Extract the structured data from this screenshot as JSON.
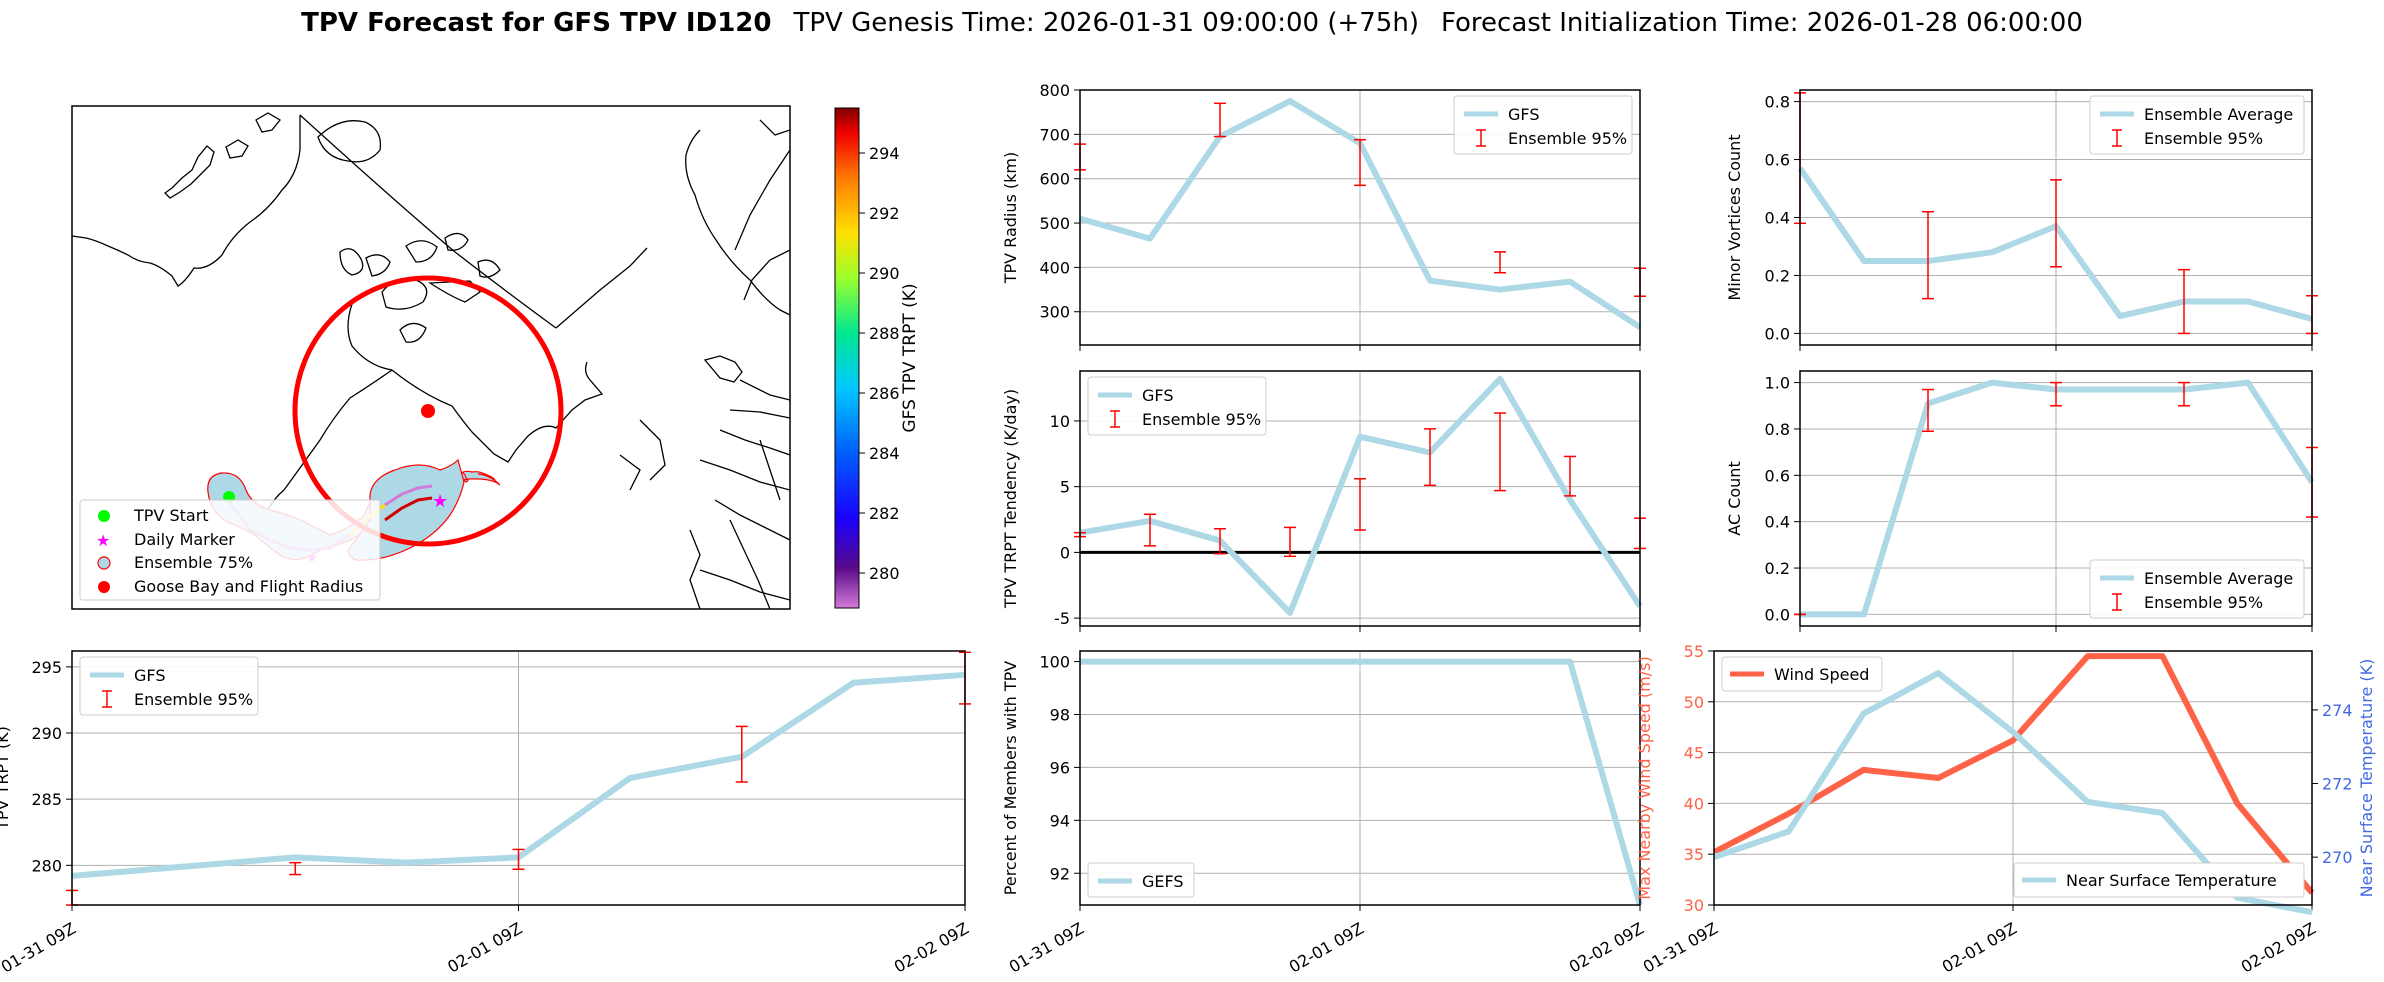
{
  "header": {
    "title_bold": "TPV Forecast for GFS TPV ID120",
    "genesis": "TPV Genesis Time: 2026-01-31 09:00:00 (+75h)",
    "init": "Forecast Initialization Time: 2026-01-28 06:00:00"
  },
  "map": {
    "colorbar_label": "GFS TPV TRPT (K)",
    "colorbar_ticks": [
      "294",
      "292",
      "290",
      "288",
      "286",
      "284",
      "282",
      "280"
    ],
    "legend": [
      "TPV Start",
      "Daily Marker",
      "Ensemble 75%",
      "Goose Bay and Flight Radius"
    ]
  },
  "colors": {
    "gfs_line": "#add8e6",
    "error_bar": "#ff0000",
    "wind_line": "#ff6347",
    "temp_axis": "#4169e1",
    "track_start": "#00ff00",
    "daily_marker": "#ff00ff",
    "goose_bay": "#ff0000"
  },
  "xticks": [
    "01-31 09Z",
    "02-01 09Z",
    "02-02 09Z"
  ],
  "chart_data": [
    {
      "id": "radius",
      "type": "line",
      "ylabel": "TPV Radius (km)",
      "ylim": [
        225,
        800
      ],
      "yticks": [
        300,
        400,
        500,
        600,
        700,
        800
      ],
      "x": [
        0,
        6,
        12,
        18,
        24,
        30,
        36,
        42,
        48
      ],
      "series": [
        {
          "name": "GFS",
          "values": [
            510,
            465,
            695,
            775,
            680,
            370,
            350,
            368,
            265
          ]
        }
      ],
      "errorbars": {
        "name": "Ensemble 95%",
        "x": [
          0,
          12,
          24,
          36,
          48
        ],
        "low": [
          620,
          695,
          585,
          388,
          335
        ],
        "high": [
          678,
          770,
          688,
          435,
          398
        ]
      },
      "legend": [
        "GFS",
        "Ensemble 95%"
      ],
      "legend_loc": "upper right"
    },
    {
      "id": "minor",
      "type": "line",
      "ylabel": "Minor Vortices Count",
      "ylim": [
        -0.04,
        0.84
      ],
      "yticks": [
        0.0,
        0.2,
        0.4,
        0.6,
        0.8
      ],
      "x": [
        0,
        6,
        12,
        18,
        24,
        30,
        36,
        42,
        48
      ],
      "series": [
        {
          "name": "Ensemble Average",
          "values": [
            0.57,
            0.25,
            0.25,
            0.28,
            0.37,
            0.06,
            0.11,
            0.11,
            0.05
          ]
        }
      ],
      "errorbars": {
        "name": "Ensemble 95%",
        "x": [
          0,
          12,
          24,
          36,
          48
        ],
        "low": [
          0.38,
          0.12,
          0.23,
          0.0,
          0.0
        ],
        "high": [
          0.83,
          0.42,
          0.53,
          0.22,
          0.13
        ]
      },
      "legend": [
        "Ensemble Average",
        "Ensemble 95%"
      ],
      "legend_loc": "upper right"
    },
    {
      "id": "tendency",
      "type": "line",
      "ylabel": "TPV TRPT Tendency (K/day)",
      "ylim": [
        -5.6,
        13.8
      ],
      "yticks": [
        -5,
        0,
        5,
        10
      ],
      "zero_line": true,
      "x": [
        0,
        6,
        12,
        18,
        24,
        30,
        36,
        42,
        48
      ],
      "series": [
        {
          "name": "GFS",
          "values": [
            1.5,
            2.4,
            0.9,
            -4.6,
            8.8,
            7.6,
            13.2,
            4.0,
            -4.1
          ]
        }
      ],
      "errorbars": {
        "name": "Ensemble 95%",
        "x": [
          0,
          6,
          12,
          18,
          24,
          30,
          36,
          42,
          48
        ],
        "low": [
          1.2,
          0.5,
          -0.1,
          -0.3,
          1.7,
          5.1,
          4.7,
          4.3,
          0.3
        ],
        "high": [
          1.5,
          2.9,
          1.8,
          1.9,
          5.6,
          9.4,
          10.6,
          7.3,
          2.6
        ]
      },
      "legend": [
        "GFS",
        "Ensemble 95%"
      ],
      "legend_loc": "upper left"
    },
    {
      "id": "ac",
      "type": "line",
      "ylabel": "AC Count",
      "ylim": [
        -0.05,
        1.05
      ],
      "yticks": [
        0.0,
        0.2,
        0.4,
        0.6,
        0.8,
        1.0
      ],
      "x": [
        0,
        6,
        12,
        18,
        24,
        30,
        36,
        42,
        48
      ],
      "series": [
        {
          "name": "Ensemble Average",
          "values": [
            0.0,
            0.0,
            0.91,
            1.0,
            0.97,
            0.97,
            0.97,
            1.0,
            0.57
          ]
        }
      ],
      "errorbars": {
        "name": "Ensemble 95%",
        "x": [
          0,
          12,
          24,
          36,
          48
        ],
        "low": [
          0.0,
          0.79,
          0.9,
          0.9,
          0.42
        ],
        "high": [
          0.0,
          0.97,
          1.0,
          1.0,
          0.72
        ]
      },
      "legend": [
        "Ensemble Average",
        "Ensemble 95%"
      ],
      "legend_loc": "lower right"
    },
    {
      "id": "trpt",
      "type": "line",
      "ylabel": "TPV TRPT (K)",
      "ylim": [
        277,
        296.2
      ],
      "yticks": [
        280,
        285,
        290,
        295
      ],
      "x": [
        0,
        6,
        12,
        18,
        24,
        30,
        36,
        42,
        48
      ],
      "series": [
        {
          "name": "GFS",
          "values": [
            279.2,
            279.9,
            280.6,
            280.2,
            280.6,
            286.6,
            288.2,
            293.8,
            294.4
          ]
        }
      ],
      "errorbars": {
        "name": "Ensemble 95%",
        "x": [
          0,
          12,
          24,
          36,
          48
        ],
        "low": [
          277.0,
          279.3,
          279.7,
          286.3,
          292.2
        ],
        "high": [
          278.1,
          280.2,
          281.2,
          290.5,
          296.1
        ]
      },
      "legend": [
        "GFS",
        "Ensemble 95%"
      ],
      "legend_loc": "upper left"
    },
    {
      "id": "percent",
      "type": "line",
      "ylabel": "Percent of Members with TPV",
      "ylim": [
        90.8,
        100.4
      ],
      "yticks": [
        92,
        94,
        96,
        98,
        100
      ],
      "x": [
        0,
        6,
        12,
        18,
        24,
        30,
        36,
        42,
        48
      ],
      "series": [
        {
          "name": "GEFS",
          "values": [
            100,
            100,
            100,
            100,
            100,
            100,
            100,
            100,
            90.8
          ]
        }
      ],
      "legend": [
        "GEFS"
      ],
      "legend_loc": "lower left"
    },
    {
      "id": "wind",
      "type": "line",
      "ylabel": "Max Nearby Wind Speed (m/s)",
      "ylabel_right": "Near Surface Temperature (K)",
      "ylim": [
        30,
        55
      ],
      "yticks": [
        30,
        35,
        40,
        45,
        50,
        55
      ],
      "ylim_right": [
        268.7,
        275.6
      ],
      "yticks_right": [
        270,
        272,
        274
      ],
      "x": [
        0,
        6,
        12,
        18,
        24,
        30,
        36,
        42,
        48
      ],
      "series": [
        {
          "name": "Wind Speed",
          "axis": "left",
          "values": [
            35.2,
            39.0,
            43.3,
            42.5,
            46.2,
            54.5,
            54.5,
            40.0,
            31.2
          ]
        },
        {
          "name": "Near Surface Temperature",
          "axis": "right",
          "values": [
            270.0,
            270.7,
            273.9,
            275.0,
            273.4,
            271.5,
            271.2,
            268.9,
            268.2
          ]
        }
      ],
      "legend": [
        "Wind Speed",
        "Near Surface Temperature"
      ]
    }
  ]
}
